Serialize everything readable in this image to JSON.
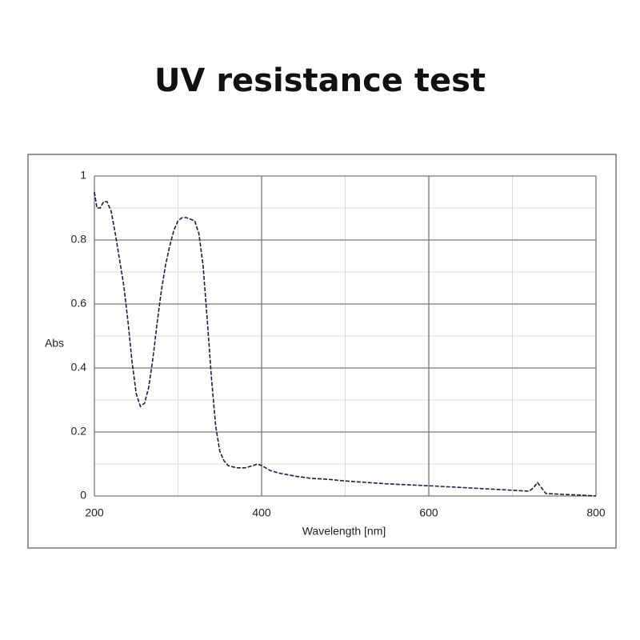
{
  "chart_data": {
    "type": "line",
    "title": "UV resistance test",
    "x_label": "Wavelength [nm]",
    "y_label": "Abs",
    "x": [
      200,
      203,
      207,
      211,
      215,
      220,
      225,
      230,
      235,
      240,
      245,
      250,
      255,
      260,
      265,
      270,
      275,
      280,
      285,
      290,
      295,
      300,
      305,
      310,
      315,
      320,
      325,
      330,
      335,
      340,
      345,
      350,
      355,
      360,
      370,
      380,
      390,
      395,
      400,
      410,
      420,
      440,
      460,
      480,
      500,
      550,
      600,
      650,
      700,
      720,
      725,
      730,
      735,
      740,
      760,
      780,
      800
    ],
    "values": [
      0.95,
      0.9,
      0.9,
      0.92,
      0.92,
      0.89,
      0.82,
      0.74,
      0.66,
      0.55,
      0.42,
      0.32,
      0.28,
      0.29,
      0.34,
      0.43,
      0.54,
      0.64,
      0.72,
      0.78,
      0.83,
      0.86,
      0.87,
      0.87,
      0.865,
      0.86,
      0.82,
      0.72,
      0.55,
      0.37,
      0.22,
      0.14,
      0.11,
      0.095,
      0.088,
      0.088,
      0.095,
      0.1,
      0.095,
      0.08,
      0.072,
      0.062,
      0.055,
      0.052,
      0.047,
      0.038,
      0.032,
      0.025,
      0.018,
      0.015,
      0.025,
      0.042,
      0.025,
      0.008,
      0.005,
      0.003,
      0
    ],
    "color": "#1c1c48",
    "line_style": "dashed",
    "xlim": [
      200,
      800
    ],
    "xticks": [
      200,
      400,
      600,
      800
    ],
    "x_minor_ticks": [
      300,
      500,
      700
    ],
    "ylim": [
      0,
      1
    ],
    "yticks": [
      0,
      0.2,
      0.4,
      0.6,
      0.8,
      1
    ],
    "y_minor_ticks": [
      0.1,
      0.3,
      0.5,
      0.7,
      0.9
    ],
    "grid": true
  }
}
